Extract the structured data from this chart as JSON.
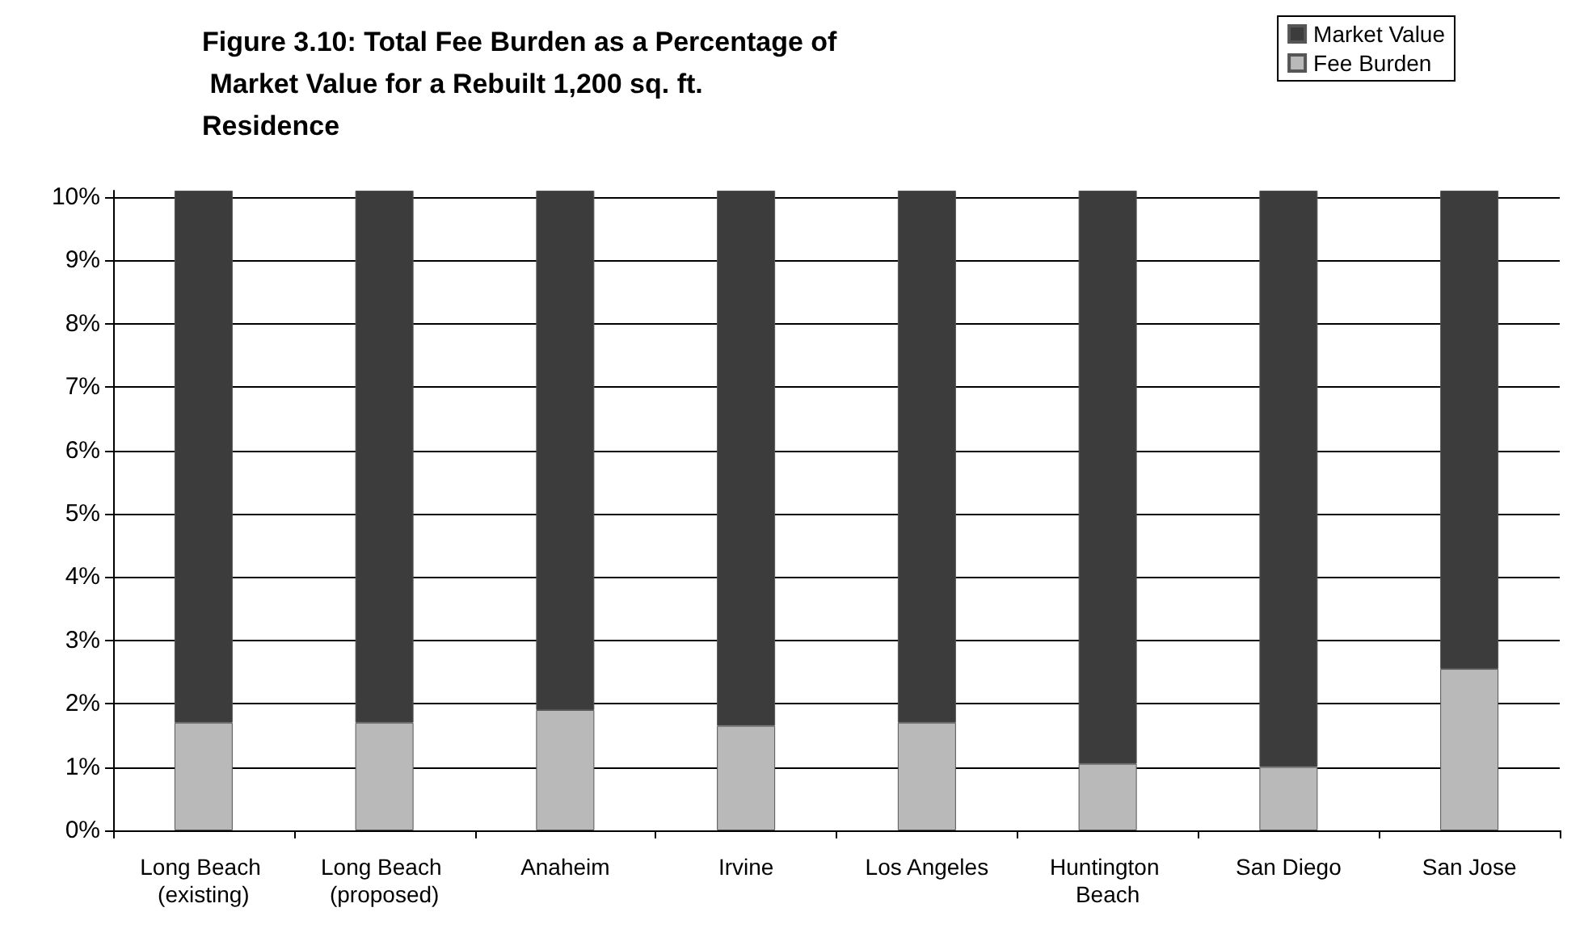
{
  "chart_data": {
    "type": "bar",
    "title": "Figure 3.10: Total Fee Burden as a Percentage of Market Value for a Rebuilt 1,200 sq. ft. Residence",
    "categories": [
      "Long Beach (existing)",
      "Long Beach (proposed)",
      "Anaheim",
      "Irvine",
      "Los Angeles",
      "Huntington Beach",
      "San Diego",
      "San Jose"
    ],
    "series": [
      {
        "name": "Fee Burden",
        "color": "#b9b9b9",
        "values": [
          1.7,
          1.7,
          1.9,
          1.65,
          1.7,
          1.05,
          1.0,
          2.55
        ]
      },
      {
        "name": "Market Value",
        "color": "#3c3c3c",
        "values": [
          8.4,
          8.4,
          8.2,
          8.45,
          8.4,
          9.05,
          9.1,
          7.55
        ]
      }
    ],
    "stacked": true,
    "ylim": [
      0,
      10.1
    ],
    "yticks": [
      {
        "value": 0,
        "label": "0%"
      },
      {
        "value": 1,
        "label": "1%"
      },
      {
        "value": 2,
        "label": "2%"
      },
      {
        "value": 3,
        "label": "3%"
      },
      {
        "value": 4,
        "label": "4%"
      },
      {
        "value": 5,
        "label": "5%"
      },
      {
        "value": 6,
        "label": "6%"
      },
      {
        "value": 7,
        "label": "7%"
      },
      {
        "value": 8,
        "label": "8%"
      },
      {
        "value": 9,
        "label": "9%"
      },
      {
        "value": 10,
        "label": "10%"
      }
    ],
    "grid": "y",
    "legend": "top right"
  }
}
